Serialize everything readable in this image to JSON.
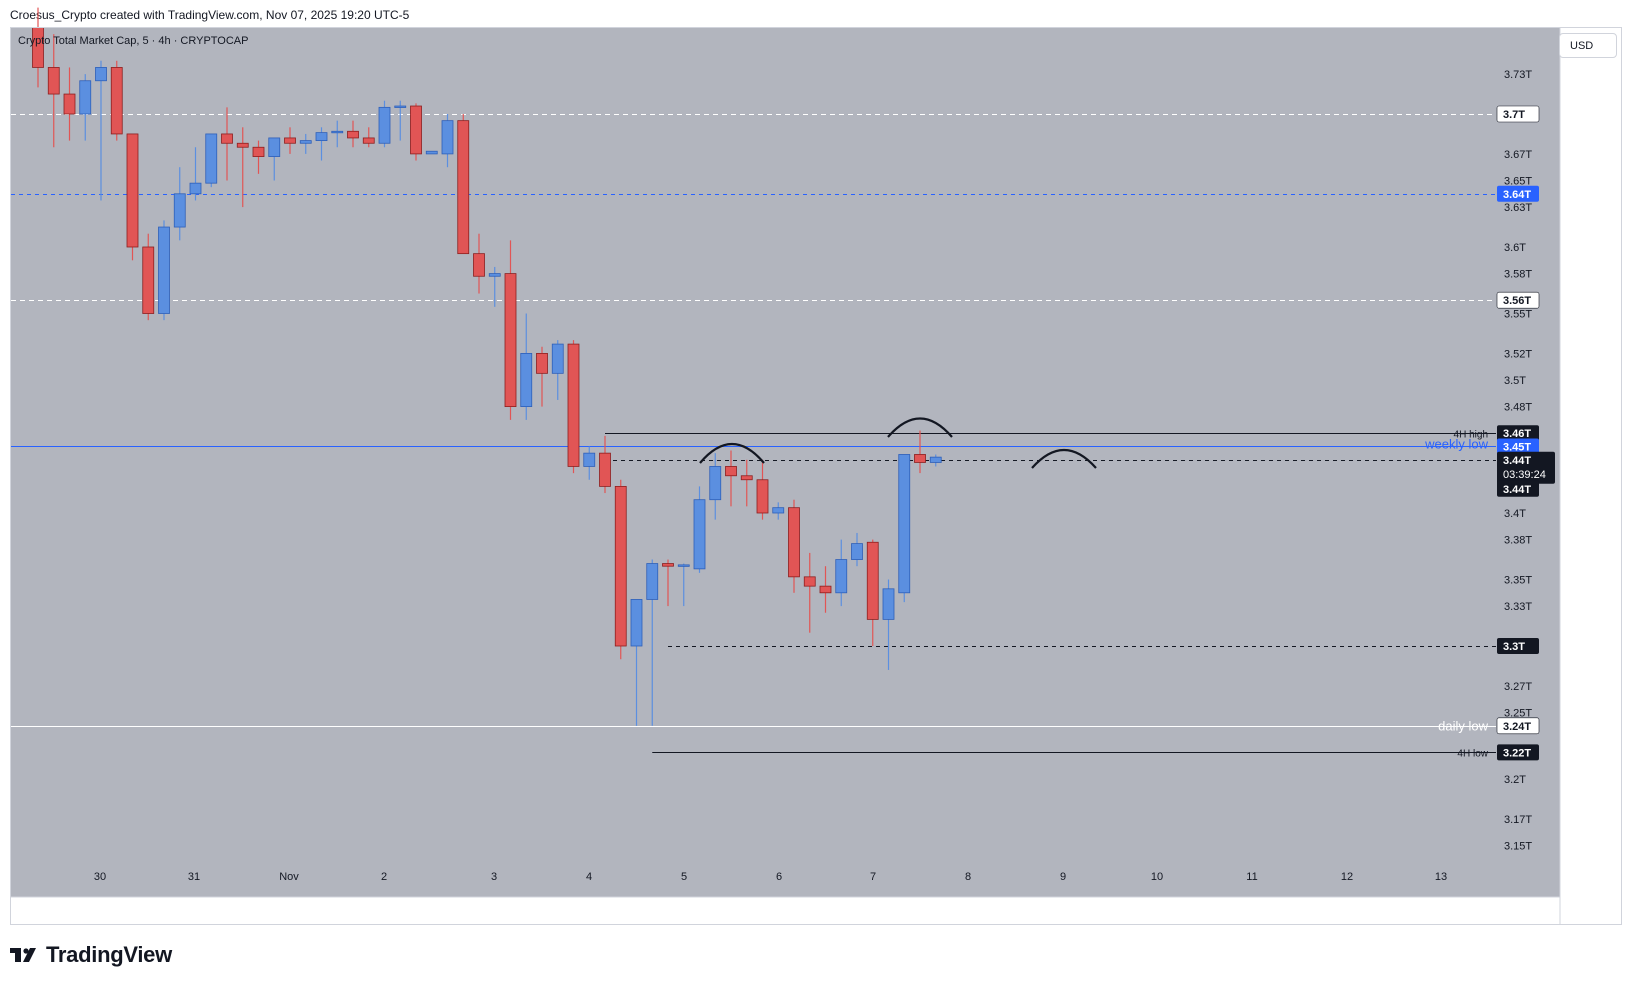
{
  "header": {
    "attribution": "Croesus_Crypto created with TradingView.com, Nov 07, 2025 19:20 UTC-5"
  },
  "symbol_line": "Crypto Total Market Cap, 5 · 4h · CRYPTOCAP",
  "currency": "USD",
  "brand": "TradingView",
  "colors": {
    "background": "#b2b5be",
    "up": "#5b8fe0",
    "down": "#e15555",
    "axis_label_dark": "#131722",
    "accent_blue": "#2962ff"
  },
  "chart_data": {
    "type": "candlestick",
    "title": "Crypto Total Market Cap, 5 · 4h · CRYPTOCAP",
    "x_tick_labels": [
      "30",
      "31",
      "Nov",
      "2",
      "3",
      "4",
      "5",
      "6",
      "7",
      "8",
      "9",
      "10",
      "11",
      "12",
      "13"
    ],
    "y_tick_labels": [
      "3.73T",
      "3.67T",
      "3.65T",
      "3.63T",
      "3.6T",
      "3.58T",
      "3.55T",
      "3.52T",
      "3.5T",
      "3.48T",
      "3.4T",
      "3.38T",
      "3.35T",
      "3.33T",
      "3.27T",
      "3.25T",
      "3.2T",
      "3.17T",
      "3.15T"
    ],
    "ylim": [
      3.13,
      3.76
    ],
    "candles": [
      {
        "o": 3.765,
        "h": 3.78,
        "l": 3.72,
        "c": 3.735
      },
      {
        "o": 3.735,
        "h": 3.76,
        "l": 3.675,
        "c": 3.715
      },
      {
        "o": 3.715,
        "h": 3.735,
        "l": 3.68,
        "c": 3.7
      },
      {
        "o": 3.7,
        "h": 3.73,
        "l": 3.68,
        "c": 3.725
      },
      {
        "o": 3.725,
        "h": 3.74,
        "l": 3.635,
        "c": 3.735
      },
      {
        "o": 3.735,
        "h": 3.74,
        "l": 3.68,
        "c": 3.685
      },
      {
        "o": 3.685,
        "h": 3.685,
        "l": 3.59,
        "c": 3.6
      },
      {
        "o": 3.6,
        "h": 3.61,
        "l": 3.545,
        "c": 3.55
      },
      {
        "o": 3.55,
        "h": 3.62,
        "l": 3.545,
        "c": 3.615
      },
      {
        "o": 3.615,
        "h": 3.66,
        "l": 3.605,
        "c": 3.64
      },
      {
        "o": 3.64,
        "h": 3.675,
        "l": 3.635,
        "c": 3.648
      },
      {
        "o": 3.648,
        "h": 3.685,
        "l": 3.645,
        "c": 3.685
      },
      {
        "o": 3.685,
        "h": 3.705,
        "l": 3.65,
        "c": 3.678
      },
      {
        "o": 3.678,
        "h": 3.69,
        "l": 3.63,
        "c": 3.675
      },
      {
        "o": 3.675,
        "h": 3.68,
        "l": 3.655,
        "c": 3.668
      },
      {
        "o": 3.668,
        "h": 3.68,
        "l": 3.65,
        "c": 3.682
      },
      {
        "o": 3.682,
        "h": 3.69,
        "l": 3.67,
        "c": 3.678
      },
      {
        "o": 3.678,
        "h": 3.685,
        "l": 3.67,
        "c": 3.68
      },
      {
        "o": 3.68,
        "h": 3.69,
        "l": 3.665,
        "c": 3.686
      },
      {
        "o": 3.686,
        "h": 3.695,
        "l": 3.675,
        "c": 3.687
      },
      {
        "o": 3.687,
        "h": 3.695,
        "l": 3.675,
        "c": 3.682
      },
      {
        "o": 3.682,
        "h": 3.69,
        "l": 3.675,
        "c": 3.678
      },
      {
        "o": 3.678,
        "h": 3.71,
        "l": 3.675,
        "c": 3.705
      },
      {
        "o": 3.705,
        "h": 3.71,
        "l": 3.68,
        "c": 3.706
      },
      {
        "o": 3.706,
        "h": 3.708,
        "l": 3.665,
        "c": 3.67
      },
      {
        "o": 3.67,
        "h": 3.672,
        "l": 3.67,
        "c": 3.672
      },
      {
        "o": 3.67,
        "h": 3.7,
        "l": 3.66,
        "c": 3.695
      },
      {
        "o": 3.695,
        "h": 3.7,
        "l": 3.595,
        "c": 3.595
      },
      {
        "o": 3.595,
        "h": 3.61,
        "l": 3.565,
        "c": 3.578
      },
      {
        "o": 3.578,
        "h": 3.585,
        "l": 3.555,
        "c": 3.58
      },
      {
        "o": 3.58,
        "h": 3.605,
        "l": 3.47,
        "c": 3.48
      },
      {
        "o": 3.48,
        "h": 3.55,
        "l": 3.47,
        "c": 3.52
      },
      {
        "o": 3.52,
        "h": 3.525,
        "l": 3.48,
        "c": 3.505
      },
      {
        "o": 3.505,
        "h": 3.53,
        "l": 3.485,
        "c": 3.527
      },
      {
        "o": 3.527,
        "h": 3.53,
        "l": 3.43,
        "c": 3.435
      },
      {
        "o": 3.435,
        "h": 3.45,
        "l": 3.425,
        "c": 3.445
      },
      {
        "o": 3.445,
        "h": 3.458,
        "l": 3.415,
        "c": 3.42
      },
      {
        "o": 3.42,
        "h": 3.425,
        "l": 3.29,
        "c": 3.3
      },
      {
        "o": 3.3,
        "h": 3.335,
        "l": 3.24,
        "c": 3.335
      },
      {
        "o": 3.335,
        "h": 3.365,
        "l": 3.24,
        "c": 3.362
      },
      {
        "o": 3.362,
        "h": 3.365,
        "l": 3.33,
        "c": 3.36
      },
      {
        "o": 3.36,
        "h": 3.362,
        "l": 3.33,
        "c": 3.361
      },
      {
        "o": 3.358,
        "h": 3.42,
        "l": 3.355,
        "c": 3.41
      },
      {
        "o": 3.41,
        "h": 3.445,
        "l": 3.395,
        "c": 3.435
      },
      {
        "o": 3.435,
        "h": 3.447,
        "l": 3.405,
        "c": 3.428
      },
      {
        "o": 3.428,
        "h": 3.44,
        "l": 3.405,
        "c": 3.425
      },
      {
        "o": 3.425,
        "h": 3.44,
        "l": 3.395,
        "c": 3.4
      },
      {
        "o": 3.4,
        "h": 3.408,
        "l": 3.395,
        "c": 3.404
      },
      {
        "o": 3.404,
        "h": 3.41,
        "l": 3.34,
        "c": 3.352
      },
      {
        "o": 3.352,
        "h": 3.37,
        "l": 3.31,
        "c": 3.345
      },
      {
        "o": 3.345,
        "h": 3.36,
        "l": 3.325,
        "c": 3.34
      },
      {
        "o": 3.34,
        "h": 3.38,
        "l": 3.33,
        "c": 3.365
      },
      {
        "o": 3.365,
        "h": 3.385,
        "l": 3.36,
        "c": 3.377
      },
      {
        "o": 3.378,
        "h": 3.38,
        "l": 3.3,
        "c": 3.32
      },
      {
        "o": 3.32,
        "h": 3.35,
        "l": 3.282,
        "c": 3.343
      },
      {
        "o": 3.34,
        "h": 3.444,
        "l": 3.333,
        "c": 3.444
      },
      {
        "o": 3.444,
        "h": 3.462,
        "l": 3.43,
        "c": 3.438
      },
      {
        "o": 3.438,
        "h": 3.444,
        "l": 3.435,
        "c": 3.442
      }
    ],
    "horizontal_levels": [
      {
        "value": 3.7,
        "label": "3.7T",
        "style": "white-dashed"
      },
      {
        "value": 3.64,
        "label": "3.64T",
        "style": "blue-dashed"
      },
      {
        "value": 3.56,
        "label": "3.56T",
        "style": "white-dashed"
      },
      {
        "value": 3.46,
        "label": "3.46T",
        "style": "black-solid",
        "note": "4H high"
      },
      {
        "value": 3.45,
        "label": "3.45T",
        "style": "blue-solid",
        "note": "weekly low"
      },
      {
        "value": 3.44,
        "label": "3.44T",
        "style": "black-dashed"
      },
      {
        "value": 3.3,
        "label": "3.3T",
        "style": "black-dashed"
      },
      {
        "value": 3.24,
        "label": "3.24T",
        "style": "white-solid",
        "note": "daily low"
      },
      {
        "value": 3.22,
        "label": "3.22T",
        "style": "black-solid",
        "note": "4H low"
      }
    ],
    "current_price_label": "3.44T",
    "countdown": "03:39:24",
    "second_price_label": "3.44T"
  }
}
